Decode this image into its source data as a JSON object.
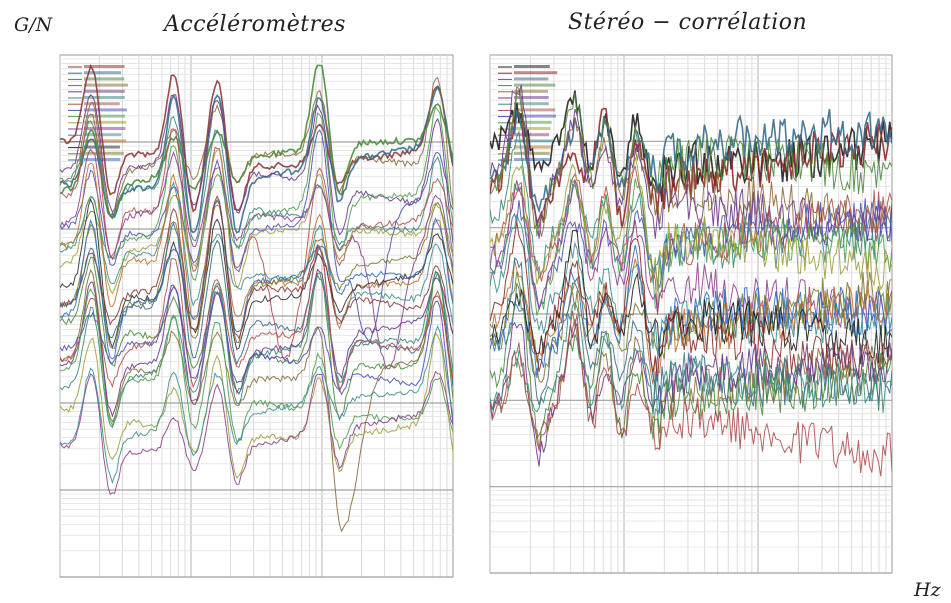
{
  "labels": {
    "y_unit": "G/N",
    "x_unit": "Hz"
  },
  "chart_data": [
    {
      "type": "line",
      "title": "Accéléromètres",
      "xscale": "log",
      "yscale": "log",
      "grid": true,
      "legend_position": "top-left",
      "colors": [
        "#8b3a3a",
        "#3a6b8b",
        "#4a8b3a",
        "#8b6b3a",
        "#6b3a8b",
        "#3a8b7b",
        "#b05050",
        "#5050b0",
        "#50a050",
        "#a0a040",
        "#904090",
        "#409090",
        "#c07030",
        "#303030",
        "#7a7a30",
        "#3070c0"
      ],
      "series_count": 28
    },
    {
      "type": "line",
      "title": "Stéréo − corrélation",
      "xscale": "log",
      "yscale": "log",
      "grid": true,
      "legend_position": "top-left",
      "colors": [
        "#202020",
        "#8b2a2a",
        "#3a6b8b",
        "#4a8b3a",
        "#8b6b3a",
        "#6b3a8b",
        "#3a8b7b",
        "#b05050",
        "#5050b0",
        "#50a050",
        "#a0a040",
        "#904090",
        "#409090",
        "#c07030",
        "#7a7a30",
        "#3070c0"
      ],
      "series_count": 24
    }
  ]
}
